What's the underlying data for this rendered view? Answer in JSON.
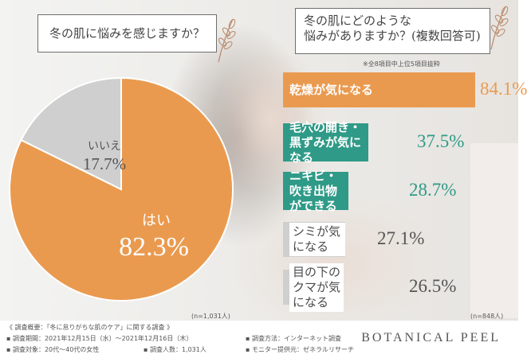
{
  "question1": "冬の肌に悩みを感じますか？",
  "question2": {
    "line1": "冬の肌にどのような",
    "line2": "悩みがありますか？(複数回答可)"
  },
  "note_top8": "※全8項目中上位5項目抜粋",
  "pie_n": "(n=1,031人)",
  "bars_n": "(n=848人)",
  "colors": {
    "orange": "#ea9a4f",
    "teal": "#2f9a87",
    "gray": "#cfcfcf"
  },
  "chart_data": [
    {
      "type": "pie",
      "title": "冬の肌に悩みを感じますか？",
      "labels": [
        "はい",
        "いいえ"
      ],
      "values": [
        82.3,
        17.7
      ],
      "value_labels": [
        "82.3%",
        "17.7%"
      ]
    },
    {
      "type": "bar",
      "title": "冬の肌にどのような悩みがありますか？(複数回答可)",
      "categories": [
        "乾燥が気になる",
        "毛穴の開き・黒ずみが気になる",
        "ニキビ・吹き出物ができる",
        "シミが気になる",
        "目の下のクマが気になる"
      ],
      "label_lines": [
        [
          "乾燥が気になる"
        ],
        [
          "毛穴の開き・",
          "黒ずみが気になる"
        ],
        [
          "ニキビ・",
          "吹き出物ができる"
        ],
        [
          "シミが気になる"
        ],
        [
          "目の下のクマが気になる"
        ]
      ],
      "values": [
        84.1,
        37.5,
        28.7,
        27.1,
        26.5
      ],
      "value_labels": [
        "84.1%",
        "37.5%",
        "28.7%",
        "27.1%",
        "26.5%"
      ]
    }
  ],
  "footer": {
    "summary": "《 調査概要：「冬に怠りがちな肌のケア」に関する調査 》",
    "period": "▪ 調査期間：2021年12月15日（水）〜2021年12月16日（木）",
    "target": "▪ 調査対象：20代〜40代の女性",
    "count": "▪ 調査人数：1,031人",
    "method": "▪ 調査方法：インターネット調査",
    "provider": "▪ モニター提供元：ゼネラルリサーチ",
    "brand": "BOTANICAL PEEL"
  }
}
